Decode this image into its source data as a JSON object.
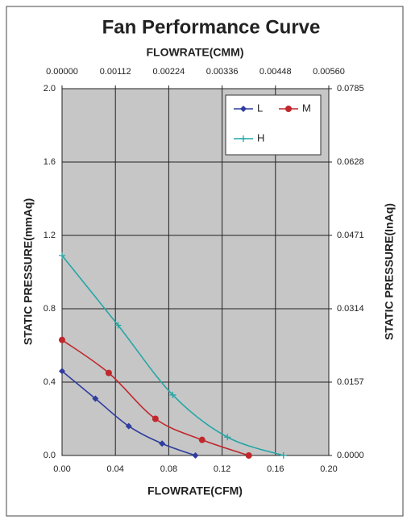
{
  "chart_data": {
    "type": "line",
    "title": "Fan Performance Curve",
    "xlabel": "FLOWRATE(CFM)",
    "x2label": "FLOWRATE(CMM)",
    "ylabel": "STATIC PRESSURE(mmAq)",
    "y2label": "STATIC PRESSURE(InAq)",
    "xlim": [
      0,
      0.2
    ],
    "xticks": [
      {
        "value": 0,
        "label": "0.00"
      },
      0.04,
      0.08,
      0.12,
      0.16,
      {
        "value": 0.2,
        "label": "0.20"
      }
    ],
    "x2lim": [
      0,
      0.0056
    ],
    "x2ticks": [
      {
        "value": 0,
        "label": "0.00000"
      },
      0.00112,
      0.00224,
      0.00336,
      0.00448,
      {
        "value": 0.0056,
        "label": "0.00560"
      }
    ],
    "ylim": [
      0,
      2
    ],
    "yticks": [
      {
        "value": 0,
        "label": "0.0"
      },
      0.4,
      0.8,
      1.2,
      1.6,
      {
        "value": 2,
        "label": "2.0"
      }
    ],
    "y2lim": [
      0,
      0.0785
    ],
    "y2ticks": [
      {
        "value": 0,
        "label": "0.0000"
      },
      0.0157,
      0.0314,
      0.0471,
      0.0628,
      0.0785
    ],
    "grid": true,
    "legend": "upper right",
    "series": [
      {
        "name": "L",
        "color": "#2f3d9e",
        "marker": "diamond",
        "x": [
          0,
          0.025,
          0.05,
          0.075,
          0.1
        ],
        "values": [
          0.46,
          0.31,
          0.16,
          0.065,
          0
        ]
      },
      {
        "name": "M",
        "color": "#c0282d",
        "marker": "circle",
        "x": [
          0,
          0.035,
          0.07,
          0.105,
          0.14
        ],
        "values": [
          0.63,
          0.45,
          0.2,
          0.085,
          0
        ]
      },
      {
        "name": "H",
        "color": "#25a6a6",
        "marker": "plus",
        "x": [
          0,
          0.042,
          0.083,
          0.124,
          0.166
        ],
        "values": [
          1.09,
          0.71,
          0.33,
          0.1,
          0
        ]
      }
    ]
  }
}
